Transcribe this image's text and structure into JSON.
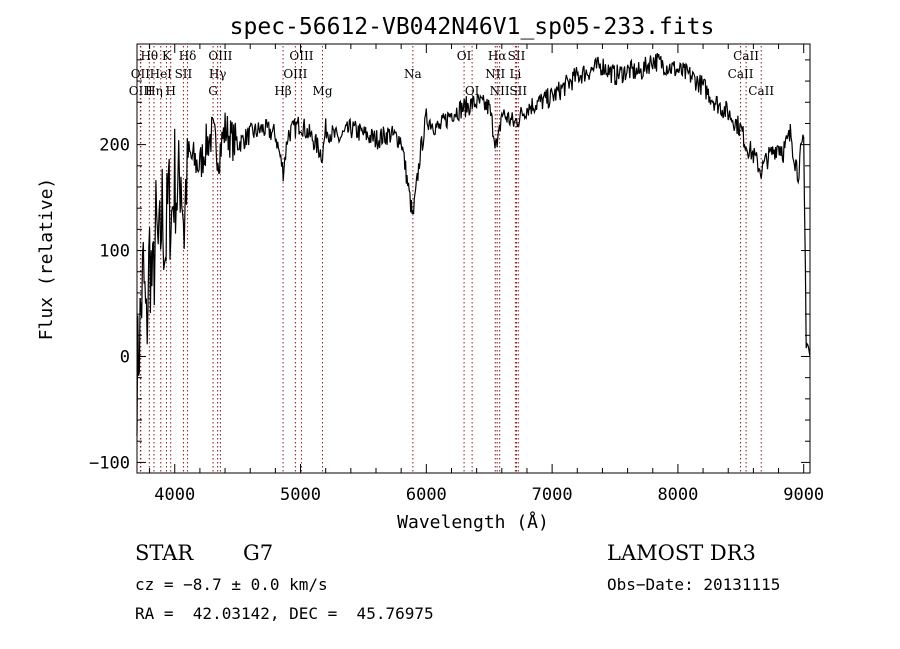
{
  "chart_data": {
    "type": "line",
    "title": "spec-56612-VB042N46V1_sp05-233.fits",
    "xlabel": "Wavelength (Å)",
    "ylabel": "Flux (relative)",
    "xlim": [
      3700,
      9050
    ],
    "ylim": [
      -110,
      295
    ],
    "x_ticks": [
      4000,
      5000,
      6000,
      7000,
      8000,
      9000
    ],
    "y_ticks": [
      -100,
      0,
      100,
      200
    ],
    "spectrum": {
      "x": [
        3700,
        3725,
        3750,
        3775,
        3800,
        3825,
        3850,
        3875,
        3900,
        3925,
        3950,
        3975,
        4000,
        4025,
        4050,
        4075,
        4100,
        4150,
        4200,
        4250,
        4300,
        4350,
        4400,
        4450,
        4500,
        4600,
        4700,
        4800,
        4862,
        4900,
        5000,
        5100,
        5175,
        5200,
        5300,
        5400,
        5500,
        5600,
        5700,
        5800,
        5893,
        5950,
        6000,
        6100,
        6200,
        6300,
        6400,
        6500,
        6563,
        6600,
        6700,
        6800,
        6900,
        7000,
        7100,
        7200,
        7300,
        7400,
        7500,
        7600,
        7700,
        7800,
        7900,
        8000,
        8100,
        8200,
        8300,
        8400,
        8500,
        8542,
        8600,
        8662,
        8700,
        8800,
        8850,
        8900,
        8950,
        9000,
        9020,
        9050
      ],
      "y": [
        -20,
        30,
        80,
        20,
        100,
        60,
        120,
        90,
        140,
        100,
        150,
        130,
        170,
        150,
        180,
        120,
        190,
        185,
        180,
        200,
        210,
        190,
        215,
        205,
        200,
        210,
        215,
        210,
        175,
        210,
        220,
        205,
        190,
        215,
        205,
        215,
        210,
        205,
        210,
        205,
        130,
        190,
        225,
        215,
        230,
        235,
        240,
        235,
        195,
        230,
        220,
        235,
        240,
        245,
        255,
        265,
        270,
        275,
        265,
        270,
        268,
        280,
        275,
        270,
        265,
        255,
        240,
        230,
        215,
        200,
        190,
        175,
        185,
        200,
        195,
        210,
        175,
        200,
        20,
        0
      ]
    },
    "lines": [
      {
        "name": "Hθ",
        "wl": 3798,
        "row": 0
      },
      {
        "name": "OII",
        "wl": 3727,
        "row": 1
      },
      {
        "name": "OIII",
        "wl": 3730,
        "row": 2
      },
      {
        "name": "K",
        "wl": 3934,
        "row": 0
      },
      {
        "name": "HeI",
        "wl": 3889,
        "row": 1
      },
      {
        "name": "Hη",
        "wl": 3835,
        "row": 2
      },
      {
        "name": "Hδ",
        "wl": 4102,
        "row": 0
      },
      {
        "name": "SII",
        "wl": 4069,
        "row": 1
      },
      {
        "name": "H",
        "wl": 3968,
        "row": 2
      },
      {
        "name": "OIII",
        "wl": 4363,
        "row": 0
      },
      {
        "name": "Hγ",
        "wl": 4341,
        "row": 1
      },
      {
        "name": "G",
        "wl": 4305,
        "row": 2
      },
      {
        "name": "OIII",
        "wl": 5007,
        "row": 0
      },
      {
        "name": "OIII",
        "wl": 4959,
        "row": 1
      },
      {
        "name": "Hβ",
        "wl": 4861,
        "row": 2
      },
      {
        "name": "Mg",
        "wl": 5175,
        "row": 2
      },
      {
        "name": "Na",
        "wl": 5893,
        "row": 1
      },
      {
        "name": "OI",
        "wl": 6300,
        "row": 0
      },
      {
        "name": "OI",
        "wl": 6364,
        "row": 2
      },
      {
        "name": "Hα",
        "wl": 6563,
        "row": 0
      },
      {
        "name": "SII",
        "wl": 6717,
        "row": 0
      },
      {
        "name": "NII",
        "wl": 6548,
        "row": 1
      },
      {
        "name": "Li",
        "wl": 6708,
        "row": 1
      },
      {
        "name": "NII",
        "wl": 6583,
        "row": 2
      },
      {
        "name": "SII",
        "wl": 6731,
        "row": 2
      },
      {
        "name": "CaII",
        "wl": 8542,
        "row": 0
      },
      {
        "name": "CaII",
        "wl": 8498,
        "row": 1
      },
      {
        "name": "CaII",
        "wl": 8662,
        "row": 2
      }
    ]
  },
  "info": {
    "object_class": "STAR",
    "subclass": "G7",
    "survey": "LAMOST DR3",
    "redshift": "cz = −8.7 ± 0.0 km/s",
    "obs_date": "Obs−Date: 20131115",
    "coords": "RA =  42.03142, DEC =  45.76975"
  },
  "colors": {
    "spectrum": "#000000",
    "line_markers": "#8b1a1a"
  }
}
